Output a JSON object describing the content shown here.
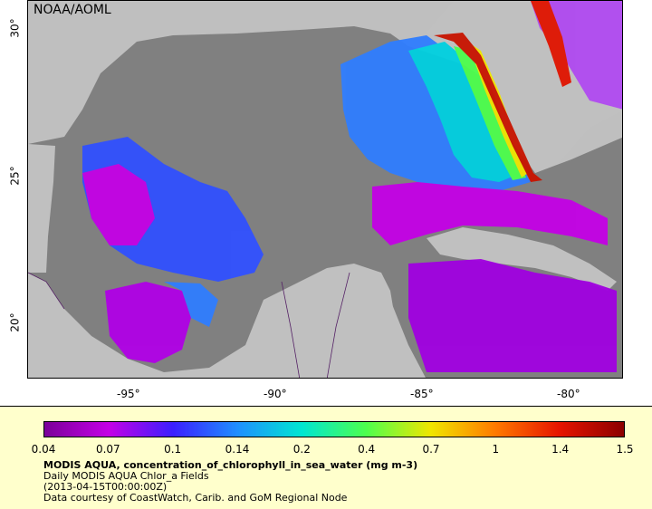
{
  "credit": "NOAA/AOML",
  "axes": {
    "lon_labels": [
      "-95°",
      "-90°",
      "-85°",
      "-80°"
    ],
    "lat_labels": [
      "30°",
      "25°",
      "20°"
    ]
  },
  "legend": {
    "ticks": [
      "0.04",
      "0.07",
      "0.1",
      "0.14",
      "0.2",
      "0.4",
      "0.7",
      "1",
      "1.4",
      "1.5"
    ],
    "colors": [
      "#7a0099",
      "#c400e6",
      "#3b1fff",
      "#1f8fff",
      "#00e6d2",
      "#4dff4d",
      "#f0e600",
      "#ff7a00",
      "#e61400",
      "#8c0000"
    ]
  },
  "description": {
    "title": "MODIS AQUA, concentration_of_chlorophyll_in_sea_water (mg m-3)",
    "line1": "Daily MODIS AQUA Chlor_a Fields",
    "line2": "(2013-04-15T00:00:00Z)",
    "line3": "Data courtesy of CoastWatch, Carib. and GoM Regional Node"
  },
  "colors": {
    "land": "#c0c0c0",
    "no_data_water": "#808080",
    "panel": "#ffffcc"
  }
}
